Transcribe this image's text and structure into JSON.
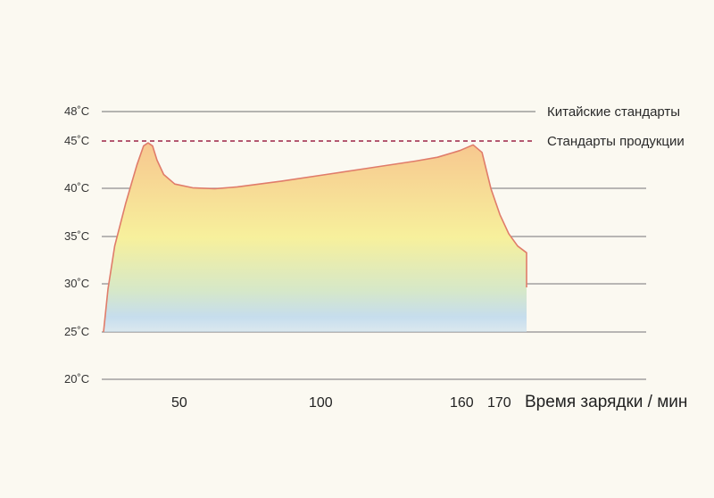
{
  "chart_data": {
    "type": "area",
    "xlabel": "Время зарядки / мин",
    "x_ticks": [
      "50",
      "100",
      "160",
      "170"
    ],
    "y_ticks": [
      "48˚C",
      "45˚C",
      "40˚C",
      "35˚C",
      "30˚C",
      "25˚C",
      "20˚C"
    ],
    "y_tick_values": [
      48,
      45,
      40,
      35,
      30,
      25,
      20
    ],
    "grid": true,
    "reference_lines": [
      {
        "label": "Китайские стандарты",
        "value": 48,
        "style": "solid",
        "color": "#8a8a8a"
      },
      {
        "label": "Стандарты продукции",
        "value": 45,
        "style": "dashed",
        "color": "#9c2447"
      }
    ],
    "series": [
      {
        "x": [
          0,
          2,
          5,
          10,
          15,
          18,
          20,
          22,
          24,
          27,
          32,
          40,
          50,
          60,
          80,
          100,
          120,
          140,
          150,
          160,
          166,
          170,
          174,
          178,
          182,
          186,
          190
        ],
        "y": [
          25,
          29.5,
          34,
          38.5,
          42.5,
          44.5,
          44.8,
          44.5,
          43,
          41.5,
          40.5,
          40.1,
          40,
          40.2,
          40.8,
          41.5,
          42.2,
          42.9,
          43.3,
          44,
          44.6,
          43.8,
          40,
          37.3,
          35.3,
          34,
          33.3
        ]
      }
    ],
    "colors": {
      "outline": "#e07c6a",
      "fill_top": "#f7c78f",
      "fill_mid": "#f7f09c",
      "fill_bottom": "#c6dded",
      "grid": "#8f8f8f"
    }
  }
}
